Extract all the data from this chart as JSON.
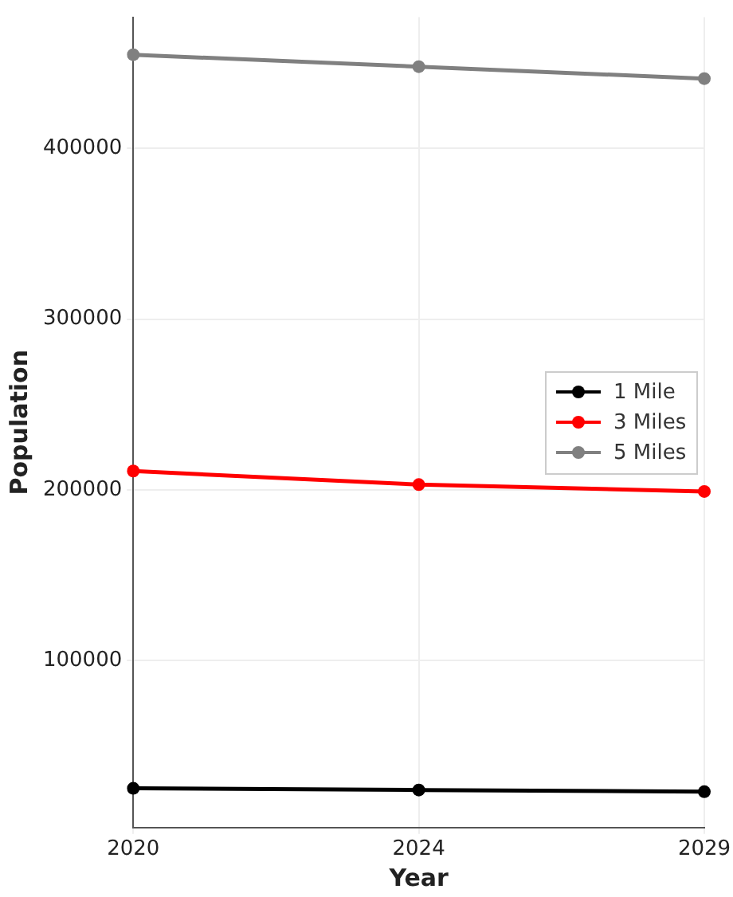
{
  "chart_data": {
    "type": "line",
    "xlabel": "Year",
    "ylabel": "Population",
    "categories": [
      "2020",
      "2024",
      "2029"
    ],
    "series": [
      {
        "name": "1 Mile",
        "color": "#000000",
        "values": [
          25000,
          24000,
          23000
        ]
      },
      {
        "name": "3 Miles",
        "color": "#ff0000",
        "values": [
          211000,
          203000,
          199000
        ]
      },
      {
        "name": "5 Miles",
        "color": "#808080",
        "values": [
          455000,
          448000,
          441000
        ]
      }
    ],
    "ylim": [
      2000,
      477000
    ],
    "yticks": [
      100000,
      200000,
      300000,
      400000
    ],
    "grid": true,
    "legend": "right",
    "marker": "circle",
    "line_style": "solid"
  }
}
